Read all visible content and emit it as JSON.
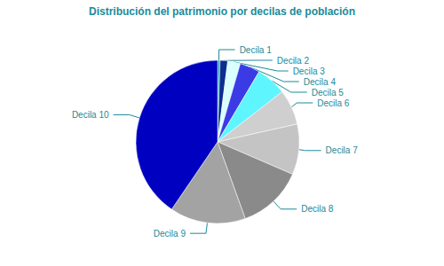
{
  "chart_data": {
    "type": "pie",
    "title": "Distribución del patrimonio por decilas de población",
    "categories": [
      "Decila 1",
      "Decila 2",
      "Decila 3",
      "Decila 4",
      "Decila 5",
      "Decila 6",
      "Decila 7",
      "Decila 8",
      "Decila 9",
      "Decila 10"
    ],
    "values": [
      0.5,
      1.5,
      2.5,
      4,
      6,
      7,
      10,
      13,
      15,
      40.5
    ],
    "colors": [
      "#2a9fc0",
      "#0b2e8f",
      "#d9ffff",
      "#3b3be6",
      "#5ff5ff",
      "#cfcfcf",
      "#c4c4c4",
      "#8a8a8a",
      "#a3a3a3",
      "#0000c0"
    ]
  }
}
